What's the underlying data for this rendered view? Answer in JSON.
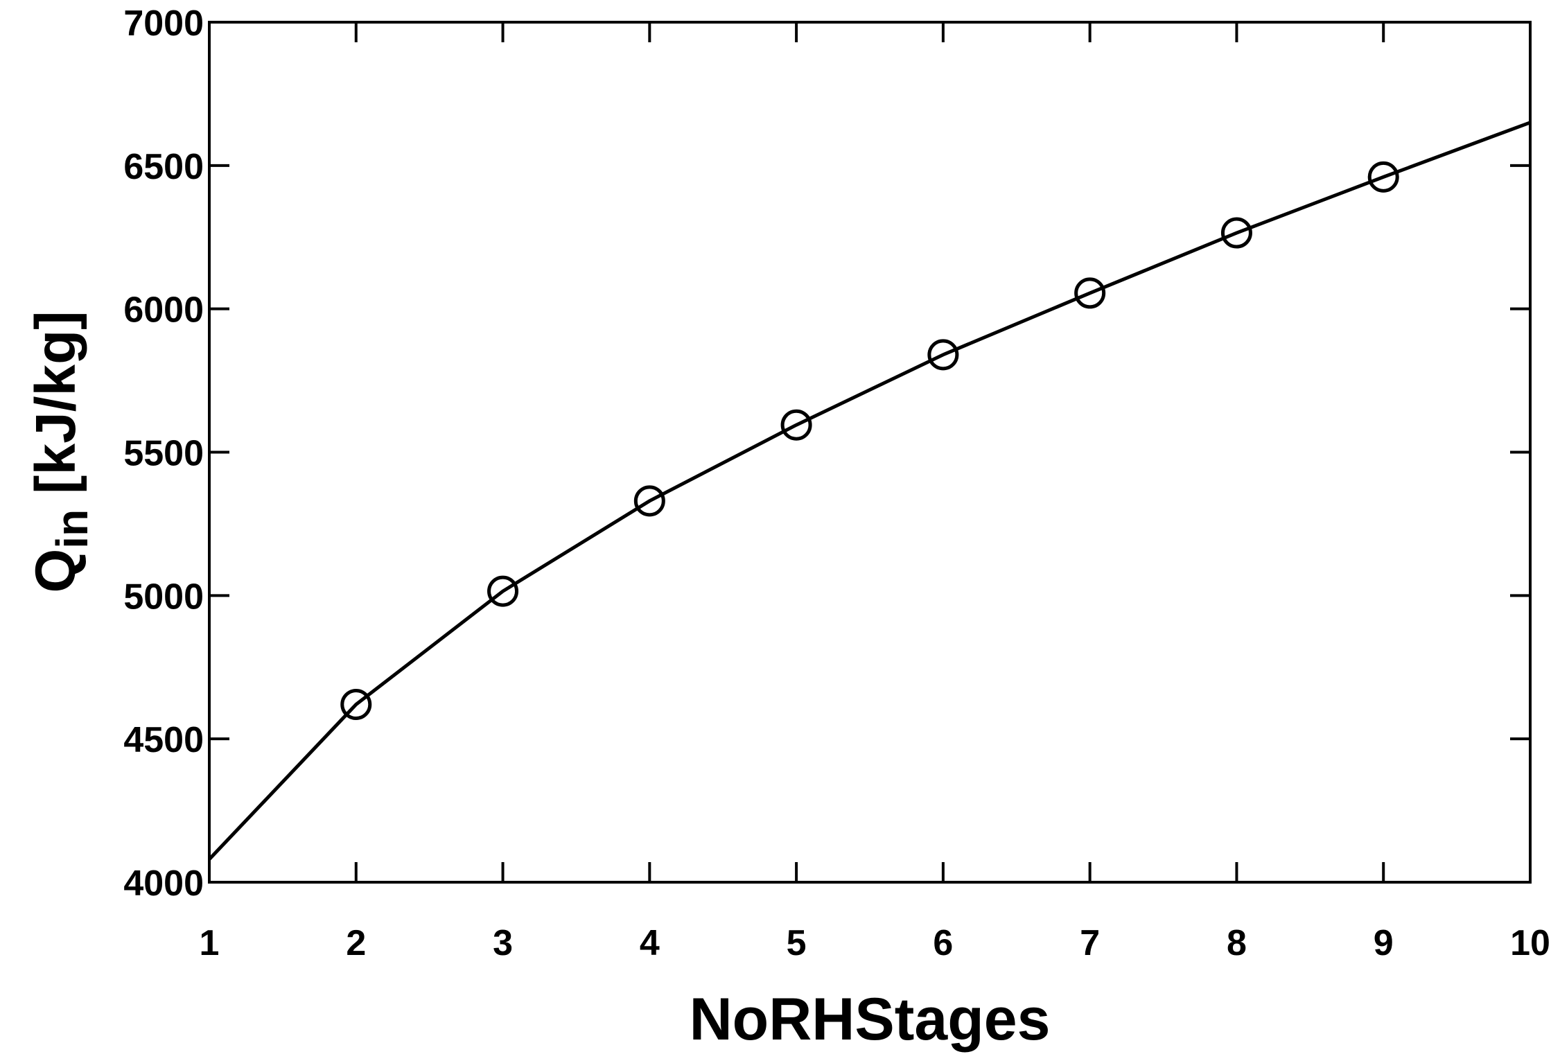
{
  "chart_data": {
    "type": "line",
    "x_label": "NoRHStages",
    "y_label": {
      "main": "Q",
      "sub": "in",
      "unit": "[kJ/kg]"
    },
    "x": [
      1,
      2,
      3,
      4,
      5,
      6,
      7,
      8,
      9,
      10
    ],
    "series": [
      {
        "color": "#000000",
        "values": [
          4080,
          4620,
          5015,
          5330,
          5595,
          5840,
          6055,
          6265,
          6460,
          6650
        ],
        "marker_shown": [
          false,
          true,
          true,
          true,
          true,
          true,
          true,
          true,
          true,
          false
        ]
      }
    ],
    "marker": "open-circle",
    "xlim": [
      1,
      10
    ],
    "xticks": [
      1,
      2,
      3,
      4,
      5,
      6,
      7,
      8,
      9,
      10
    ],
    "ylim": [
      4000,
      7000
    ],
    "yticks": [
      4000,
      4500,
      5000,
      5500,
      6000,
      6500,
      7000
    ],
    "grid": false
  }
}
